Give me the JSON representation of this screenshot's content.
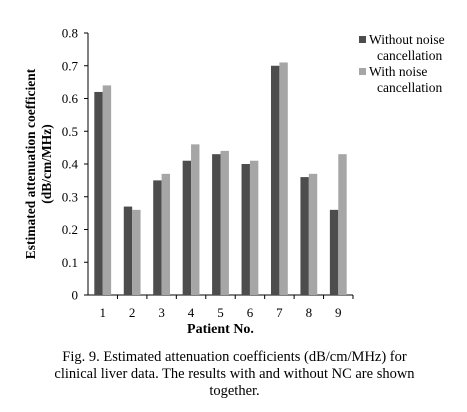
{
  "chart_data": {
    "type": "bar",
    "categories": [
      "1",
      "2",
      "3",
      "4",
      "5",
      "6",
      "7",
      "8",
      "9"
    ],
    "series": [
      {
        "name": "Without noise cancellation",
        "values": [
          0.62,
          0.27,
          0.35,
          0.41,
          0.43,
          0.4,
          0.7,
          0.36,
          0.26
        ]
      },
      {
        "name": "With noise cancellation",
        "values": [
          0.64,
          0.26,
          0.37,
          0.46,
          0.44,
          0.41,
          0.71,
          0.37,
          0.43
        ]
      }
    ],
    "xlabel": "Patient No.",
    "ylabel": "Estimated attenuation coefficient (dB/cm/MHz)",
    "ylabel_lines": [
      "Estimated attenuation coefficient",
      "(dB/cm/MHz)"
    ],
    "ylim": [
      0,
      0.8
    ],
    "yticks": [
      0,
      0.1,
      0.2,
      0.3,
      0.4,
      0.5,
      0.6,
      0.7,
      0.8
    ],
    "ytick_labels": [
      "0",
      "0.1",
      "0.2",
      "0.3",
      "0.4",
      "0.5",
      "0.6",
      "0.7",
      "0.8"
    ],
    "legend_position": "top-right",
    "legend_lines": [
      [
        "Without noise",
        "cancellation"
      ],
      [
        "With noise",
        "cancellation"
      ]
    ],
    "grid": false,
    "colors": [
      "#4d4d4d",
      "#a6a6a6"
    ]
  },
  "caption": {
    "line1": "Fig. 9.  Estimated attenuation coefficients (dB/cm/MHz) for",
    "line2": "clinical liver data. The results with and without NC are shown",
    "line3": "together."
  }
}
